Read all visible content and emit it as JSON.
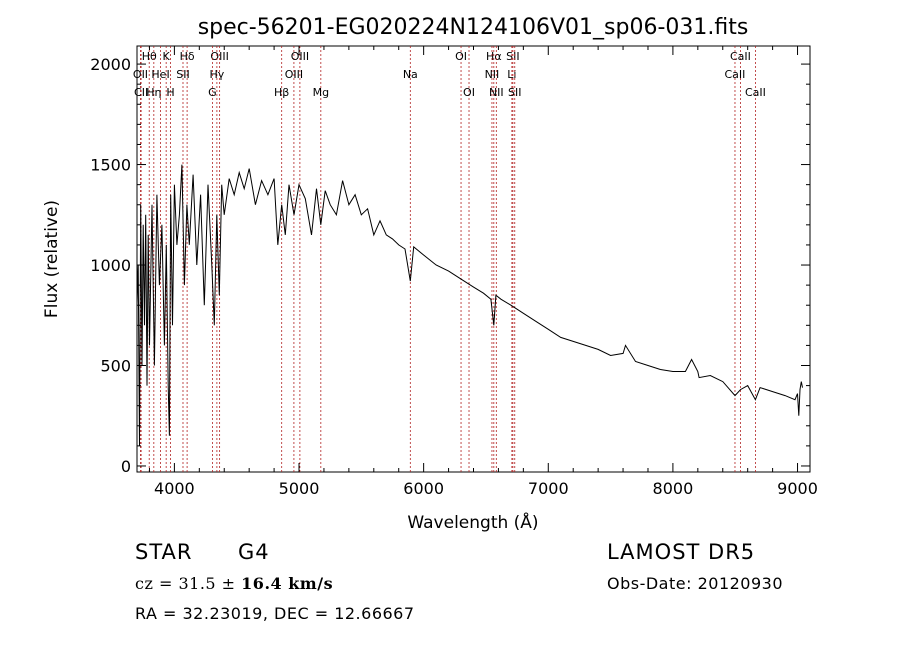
{
  "chart_data": {
    "type": "line",
    "title": "spec-56201-EG020224N124106V01_sp06-031.fits",
    "xlabel": "Wavelength (Å)",
    "ylabel": "Flux (relative)",
    "xlim": [
      3700,
      9100
    ],
    "ylim": [
      -30,
      2090
    ],
    "xticks": [
      4000,
      5000,
      6000,
      7000,
      8000,
      9000
    ],
    "yticks": [
      0,
      500,
      1000,
      1500,
      2000
    ],
    "grid": false,
    "line_color": "#000000",
    "marker_color": "#b22222",
    "lines": [
      {
        "label": "Hθ",
        "x": 3798,
        "row": 0
      },
      {
        "label": "OII",
        "x": 3728,
        "row": 1
      },
      {
        "label": "CII",
        "x": 3733,
        "row": 2
      },
      {
        "label": "Hη",
        "x": 3835,
        "row": 2
      },
      {
        "label": "K",
        "x": 3934,
        "row": 0
      },
      {
        "label": "HeI",
        "x": 3889,
        "row": 1
      },
      {
        "label": "H",
        "x": 3969,
        "row": 2
      },
      {
        "label": "Hδ",
        "x": 4102,
        "row": 0
      },
      {
        "label": "SII",
        "x": 4069,
        "row": 1
      },
      {
        "label": "OIII",
        "x": 4363,
        "row": 0
      },
      {
        "label": "Hγ",
        "x": 4341,
        "row": 1
      },
      {
        "label": "G",
        "x": 4305,
        "row": 2
      },
      {
        "label": "Hβ",
        "x": 4861,
        "row": 2
      },
      {
        "label": "OIII",
        "x": 4959,
        "row": 1
      },
      {
        "label": "OIII",
        "x": 5007,
        "row": 0
      },
      {
        "label": "Mg",
        "x": 5175,
        "row": 2
      },
      {
        "label": "Na",
        "x": 5893,
        "row": 1
      },
      {
        "label": "OI",
        "x": 6300,
        "row": 0
      },
      {
        "label": "OI",
        "x": 6364,
        "row": 2
      },
      {
        "label": "Hα",
        "x": 6563,
        "row": 0
      },
      {
        "label": "NII",
        "x": 6548,
        "row": 1
      },
      {
        "label": "NII",
        "x": 6583,
        "row": 2
      },
      {
        "label": "SII",
        "x": 6716,
        "row": 0
      },
      {
        "label": "Li",
        "x": 6708,
        "row": 1
      },
      {
        "label": "SII",
        "x": 6731,
        "row": 2
      },
      {
        "label": "CaII",
        "x": 8542,
        "row": 0
      },
      {
        "label": "CaII",
        "x": 8498,
        "row": 1
      },
      {
        "label": "CaII",
        "x": 8662,
        "row": 2
      }
    ],
    "spectrum": {
      "x": [
        3700,
        3710,
        3720,
        3730,
        3740,
        3750,
        3760,
        3770,
        3780,
        3790,
        3800,
        3820,
        3840,
        3860,
        3880,
        3900,
        3920,
        3935,
        3950,
        3960,
        3970,
        3985,
        4000,
        4020,
        4040,
        4060,
        4080,
        4100,
        4120,
        4150,
        4180,
        4210,
        4240,
        4270,
        4300,
        4320,
        4340,
        4360,
        4380,
        4400,
        4440,
        4480,
        4520,
        4560,
        4600,
        4650,
        4700,
        4750,
        4800,
        4830,
        4861,
        4890,
        4920,
        4960,
        5000,
        5050,
        5100,
        5140,
        5175,
        5210,
        5250,
        5300,
        5350,
        5400,
        5450,
        5500,
        5550,
        5600,
        5650,
        5700,
        5750,
        5800,
        5850,
        5893,
        5920,
        6000,
        6100,
        6200,
        6300,
        6400,
        6480,
        6540,
        6563,
        6580,
        6620,
        6700,
        6800,
        6900,
        7000,
        7100,
        7200,
        7300,
        7400,
        7500,
        7600,
        7620,
        7700,
        7800,
        7900,
        8000,
        8100,
        8150,
        8200,
        8210,
        8300,
        8400,
        8498,
        8542,
        8600,
        8662,
        8700,
        8800,
        8900,
        8980,
        9000,
        9010,
        9020,
        9030,
        9040
      ],
      "y": [
        800,
        1000,
        100,
        1300,
        500,
        1200,
        700,
        1250,
        400,
        1150,
        600,
        1300,
        500,
        1350,
        900,
        1200,
        600,
        1100,
        400,
        150,
        1350,
        700,
        1400,
        1100,
        1250,
        1500,
        900,
        1300,
        1100,
        1450,
        1000,
        1350,
        800,
        1400,
        1000,
        700,
        1250,
        850,
        1400,
        1250,
        1430,
        1350,
        1460,
        1380,
        1480,
        1300,
        1420,
        1350,
        1430,
        1100,
        1300,
        1150,
        1400,
        1250,
        1400,
        1330,
        1150,
        1380,
        1200,
        1370,
        1300,
        1250,
        1420,
        1300,
        1350,
        1250,
        1280,
        1150,
        1220,
        1150,
        1130,
        1100,
        1080,
        920,
        1090,
        1050,
        1000,
        970,
        930,
        890,
        860,
        830,
        700,
        850,
        830,
        800,
        760,
        720,
        680,
        640,
        620,
        600,
        580,
        550,
        560,
        600,
        520,
        500,
        480,
        470,
        470,
        530,
        470,
        440,
        450,
        420,
        350,
        380,
        400,
        330,
        390,
        370,
        350,
        330,
        360,
        250,
        380,
        420,
        390
      ]
    }
  },
  "info": {
    "object_type": "STAR",
    "subclass": "G4",
    "survey": "LAMOST  DR5",
    "cz_label": "cz = 31.5 ± ",
    "cz_value": "16.4 km/s",
    "obs_date": "Obs-Date: 20120930",
    "coords": "RA =  32.23019, DEC =  12.66667"
  }
}
